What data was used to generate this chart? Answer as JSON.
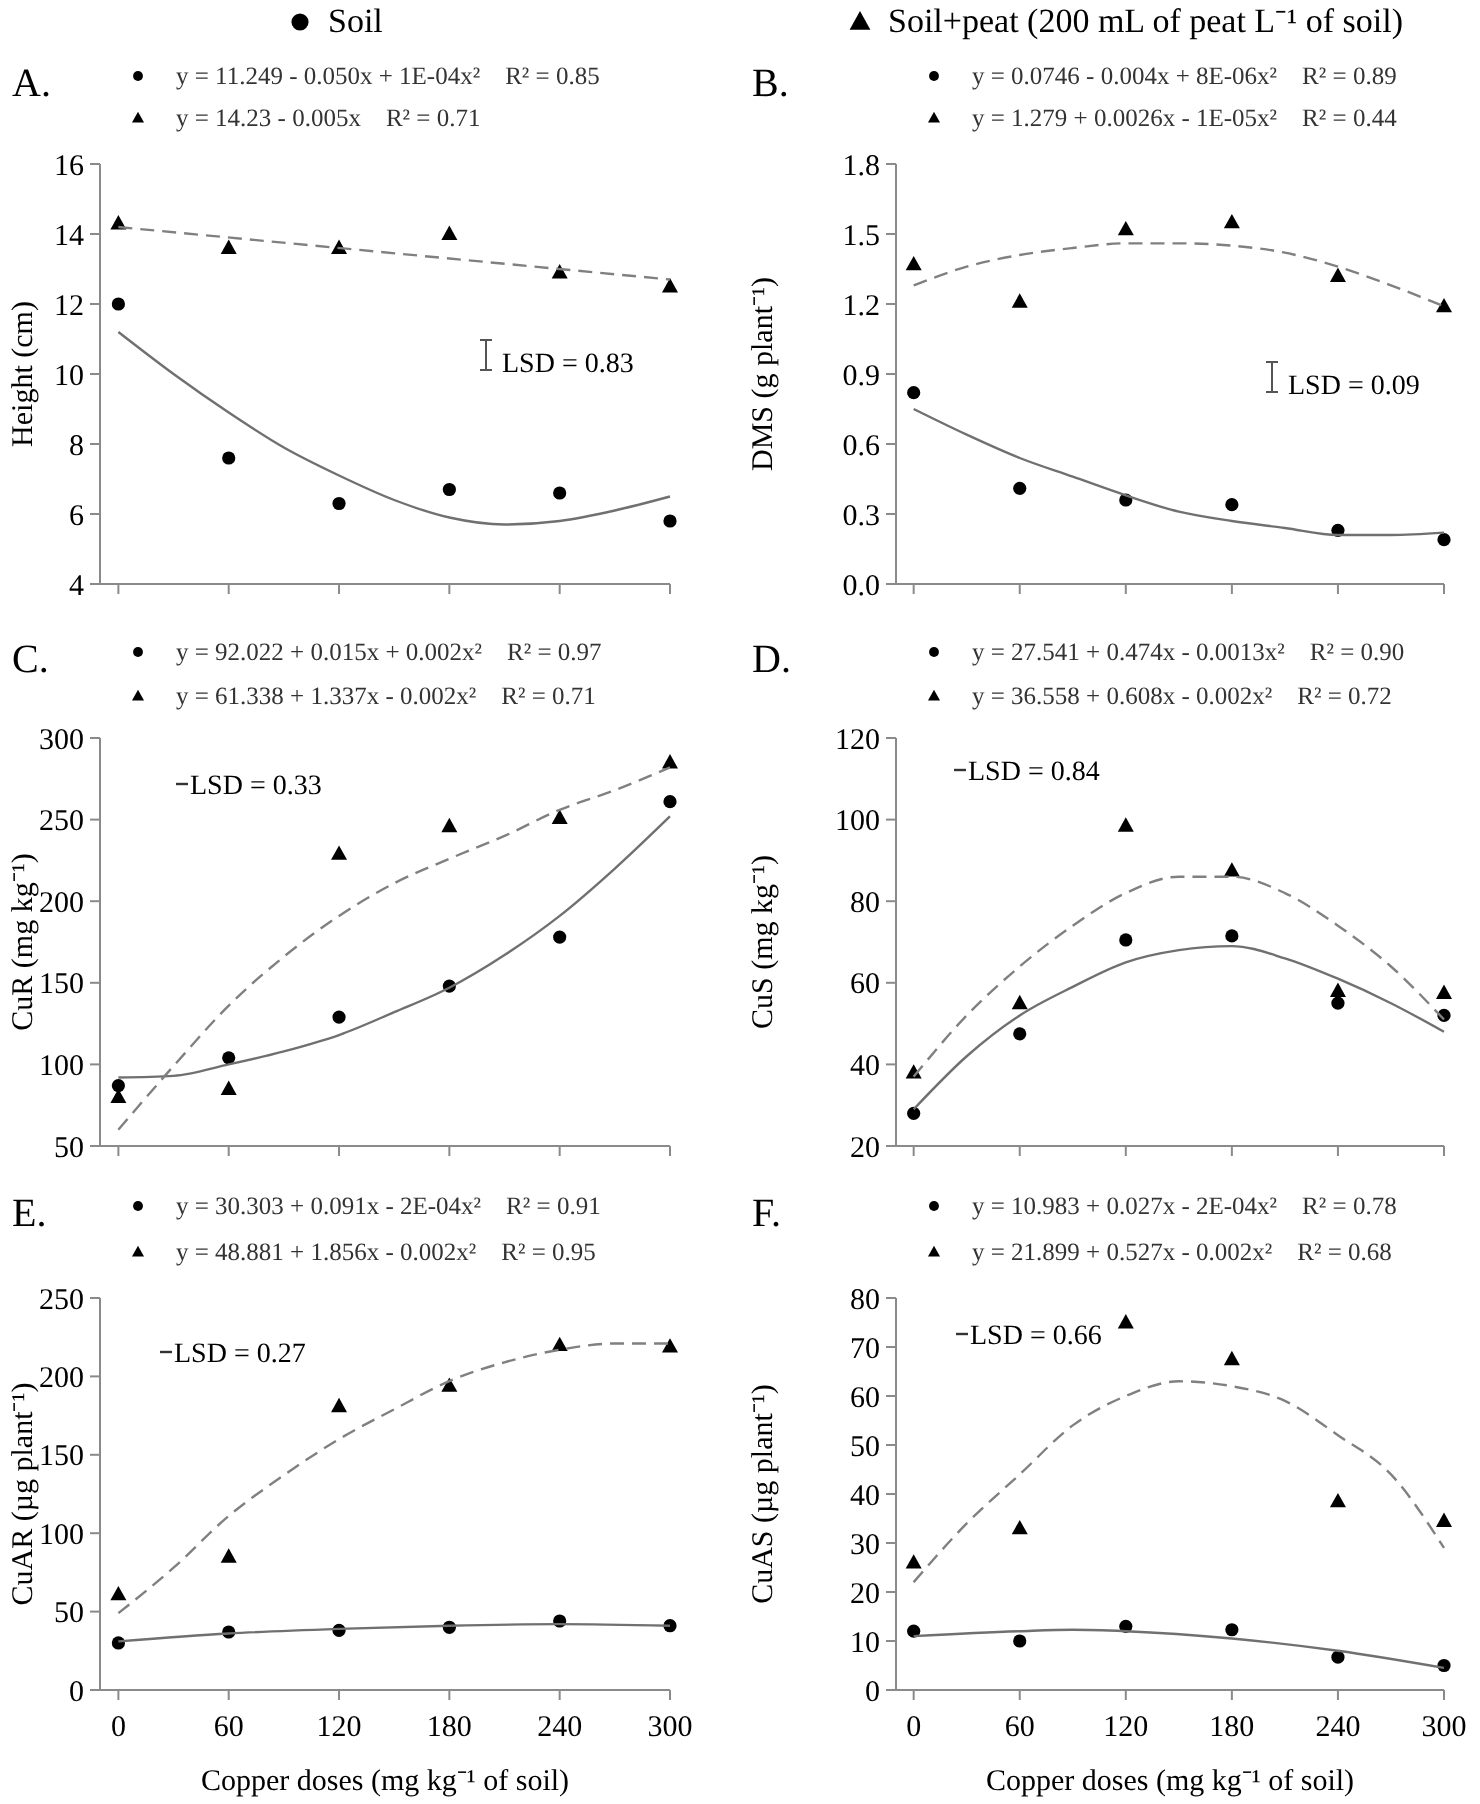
{
  "chart_data": [
    {
      "type": "scatter",
      "title": "A.",
      "ylabel": "Height (cm)",
      "legend": "top",
      "tick_labels": "y",
      "x": [
        0,
        60,
        120,
        180,
        240,
        300
      ],
      "xlim": [
        -10,
        300
      ],
      "xticks": [
        0,
        60,
        120,
        180,
        240,
        300
      ],
      "ylim": [
        4,
        16
      ],
      "yticks": [
        4,
        6,
        8,
        10,
        12,
        14,
        16
      ],
      "series": [
        {
          "name": "Soil",
          "type": "scatter",
          "marker": "circle",
          "color": "#000000",
          "values": [
            12.0,
            7.6,
            6.3,
            6.7,
            6.6,
            5.8
          ]
        },
        {
          "name": "Soil+peat (200 mL of peat L⁻¹ of soil)",
          "type": "scatter",
          "marker": "triangle",
          "color": "#000000",
          "values": [
            14.3,
            13.6,
            13.6,
            14.0,
            12.9,
            12.5
          ]
        },
        {
          "type": "line",
          "line_style": "solid",
          "color": "#707070",
          "x": [
            0,
            30,
            60,
            90,
            120,
            150,
            180,
            210,
            240,
            270,
            300
          ],
          "values": [
            11.2,
            10.0,
            8.9,
            7.9,
            7.1,
            6.4,
            5.9,
            5.7,
            5.8,
            6.1,
            6.5
          ]
        },
        {
          "type": "line",
          "line_style": "dashed",
          "color": "#808080",
          "x": [
            0,
            300
          ],
          "values": [
            14.2,
            12.7
          ]
        }
      ],
      "annotations": [
        "y = 11.249 - 0.050x + 1E-04x²    R² = 0.85",
        "y = 14.23 - 0.005x    R² = 0.71",
        "LSD = 0.83"
      ]
    },
    {
      "type": "scatter",
      "title": "B.",
      "ylabel": "DMS (g plant⁻¹)",
      "tick_labels": "y",
      "x": [
        0,
        60,
        120,
        180,
        240,
        300
      ],
      "xlim": [
        -10,
        300
      ],
      "xticks": [
        0,
        60,
        120,
        180,
        240,
        300
      ],
      "ylim": [
        0,
        1.8
      ],
      "yticks": [
        {
          "value": 0,
          "label": "0.0"
        },
        0.3,
        0.6,
        0.9,
        1.2,
        1.5,
        1.8
      ],
      "series": [
        {
          "type": "scatter",
          "marker": "circle",
          "color": "#000000",
          "values": [
            0.82,
            0.41,
            0.36,
            0.34,
            0.23,
            0.19
          ]
        },
        {
          "type": "scatter",
          "marker": "triangle",
          "color": "#000000",
          "values": [
            1.37,
            1.21,
            1.52,
            1.55,
            1.32,
            1.19
          ]
        },
        {
          "type": "line",
          "line_style": "solid",
          "color": "#707070",
          "x": [
            0,
            30,
            60,
            90,
            120,
            150,
            180,
            210,
            240,
            270,
            300
          ],
          "values": [
            0.75,
            0.64,
            0.54,
            0.46,
            0.38,
            0.31,
            0.27,
            0.24,
            0.21,
            0.21,
            0.22
          ]
        },
        {
          "type": "line",
          "line_style": "dashed",
          "color": "#808080",
          "x": [
            0,
            30,
            60,
            90,
            120,
            150,
            180,
            210,
            240,
            270,
            300
          ],
          "values": [
            1.28,
            1.36,
            1.41,
            1.44,
            1.46,
            1.46,
            1.45,
            1.42,
            1.36,
            1.28,
            1.19
          ]
        }
      ],
      "annotations": [
        "y = 0.0746 - 0.004x + 8E-06x²    R² = 0.89",
        "y = 1.279 + 0.0026x - 1E-05x²    R² = 0.44",
        "LSD = 0.09"
      ]
    },
    {
      "type": "scatter",
      "title": "C.",
      "ylabel": "CuR (mg kg⁻¹)",
      "tick_labels": "y",
      "x": [
        0,
        60,
        120,
        180,
        240,
        300
      ],
      "xlim": [
        -10,
        300
      ],
      "xticks": [
        0,
        60,
        120,
        180,
        240,
        300
      ],
      "ylim": [
        50,
        300
      ],
      "yticks": [
        50,
        100,
        150,
        200,
        250,
        300
      ],
      "series": [
        {
          "type": "scatter",
          "marker": "circle",
          "color": "#000000",
          "values": [
            87,
            104,
            129,
            148,
            178,
            261
          ]
        },
        {
          "type": "scatter",
          "marker": "triangle",
          "color": "#000000",
          "values": [
            80,
            85,
            229,
            246,
            251,
            285
          ]
        },
        {
          "type": "line",
          "line_style": "solid",
          "color": "#707070",
          "x": [
            0,
            30,
            60,
            90,
            120,
            150,
            180,
            210,
            240,
            270,
            300
          ],
          "values": [
            92,
            93,
            100,
            108,
            118,
            132,
            147,
            167,
            191,
            220,
            252
          ]
        },
        {
          "type": "line",
          "line_style": "dashed",
          "color": "#808080",
          "x": [
            0,
            30,
            60,
            90,
            120,
            150,
            180,
            210,
            240,
            270,
            300
          ],
          "values": [
            60,
            99,
            136,
            166,
            191,
            211,
            226,
            240,
            256,
            268,
            282
          ]
        }
      ],
      "annotations": [
        "y = 92.022 + 0.015x + 0.002x²    R² = 0.97",
        "y = 61.338 + 1.337x - 0.002x²    R² = 0.71",
        "LSD = 0.33"
      ]
    },
    {
      "type": "scatter",
      "title": "D.",
      "ylabel": "CuS (mg kg⁻¹)",
      "tick_labels": "y",
      "x": [
        0,
        60,
        120,
        180,
        240,
        300
      ],
      "xlim": [
        -10,
        300
      ],
      "xticks": [
        0,
        60,
        120,
        180,
        240,
        300
      ],
      "ylim": [
        20,
        120
      ],
      "yticks": [
        20,
        40,
        60,
        80,
        100,
        120
      ],
      "series": [
        {
          "type": "scatter",
          "marker": "circle",
          "color": "#000000",
          "values": [
            28,
            47.5,
            70.5,
            71.5,
            55,
            52
          ]
        },
        {
          "type": "scatter",
          "marker": "triangle",
          "color": "#000000",
          "values": [
            38,
            55,
            98.5,
            87.5,
            58,
            57.5
          ]
        },
        {
          "type": "line",
          "line_style": "solid",
          "color": "#707070",
          "x": [
            0,
            30,
            60,
            90,
            120,
            150,
            180,
            210,
            240,
            270,
            300
          ],
          "values": [
            29,
            42,
            52,
            59,
            65,
            68,
            69,
            66,
            61,
            55,
            48
          ]
        },
        {
          "type": "line",
          "line_style": "dashed",
          "color": "#808080",
          "x": [
            0,
            30,
            60,
            90,
            120,
            150,
            180,
            210,
            240,
            270,
            300
          ],
          "values": [
            37,
            52,
            64,
            74,
            82,
            86,
            86,
            82,
            74,
            64,
            51
          ]
        }
      ],
      "annotations": [
        "y = 27.541 + 0.474x - 0.0013x²    R² = 0.90",
        "y = 36.558 + 0.608x - 0.002x²    R² = 0.72",
        "LSD = 0.84"
      ]
    },
    {
      "type": "scatter",
      "title": "E.",
      "ylabel": "CuAR (µg plant⁻¹)",
      "xlabel": "Copper doses (mg kg⁻¹ of soil)",
      "x": [
        0,
        60,
        120,
        180,
        240,
        300
      ],
      "xlim": [
        -10,
        300
      ],
      "xticks": [
        0,
        60,
        120,
        180,
        240,
        300
      ],
      "ylim": [
        0,
        250
      ],
      "yticks": [
        0,
        50,
        100,
        150,
        200,
        250
      ],
      "series": [
        {
          "type": "scatter",
          "marker": "circle",
          "color": "#000000",
          "values": [
            30,
            37,
            38,
            40,
            44,
            41
          ]
        },
        {
          "type": "scatter",
          "marker": "triangle",
          "color": "#000000",
          "values": [
            61,
            85,
            181,
            194,
            220,
            219
          ]
        },
        {
          "type": "line",
          "line_style": "solid",
          "color": "#707070",
          "x": [
            0,
            60,
            120,
            180,
            240,
            300
          ],
          "values": [
            31,
            36,
            39,
            41,
            42,
            41
          ]
        },
        {
          "type": "line",
          "line_style": "dashed",
          "color": "#808080",
          "x": [
            0,
            30,
            60,
            90,
            120,
            150,
            180,
            210,
            240,
            270,
            300
          ],
          "values": [
            49,
            78,
            111,
            137,
            160,
            179,
            197,
            209,
            217,
            221,
            221
          ]
        }
      ],
      "annotations": [
        "y = 30.303 + 0.091x - 2E-04x²    R² = 0.91",
        "y = 48.881 + 1.856x - 0.002x²    R² = 0.95",
        "LSD = 0.27"
      ]
    },
    {
      "type": "scatter",
      "title": "F.",
      "ylabel": "CuAS (µg plant⁻¹)",
      "xlabel": "Copper doses (mg kg⁻¹ of soil)",
      "x": [
        0,
        60,
        120,
        180,
        240,
        300
      ],
      "xlim": [
        -10,
        300
      ],
      "xticks": [
        0,
        60,
        120,
        180,
        240,
        300
      ],
      "ylim": [
        0,
        80
      ],
      "yticks": [
        0,
        10,
        20,
        30,
        40,
        50,
        60,
        70,
        80
      ],
      "series": [
        {
          "type": "scatter",
          "marker": "circle",
          "color": "#000000",
          "values": [
            12,
            10,
            13,
            12.3,
            6.7,
            5
          ]
        },
        {
          "type": "scatter",
          "marker": "triangle",
          "color": "#000000",
          "values": [
            26,
            33,
            75,
            67.5,
            38.5,
            34.5
          ]
        },
        {
          "type": "line",
          "line_style": "solid",
          "color": "#707070",
          "x": [
            0,
            60,
            90,
            120,
            180,
            240,
            300
          ],
          "values": [
            11,
            12,
            12.3,
            12,
            10.5,
            8,
            4.5
          ]
        },
        {
          "type": "line",
          "line_style": "dashed",
          "color": "#808080",
          "x": [
            0,
            30,
            60,
            90,
            120,
            150,
            180,
            210,
            240,
            270,
            300
          ],
          "values": [
            22,
            34,
            44,
            54,
            60,
            63,
            62,
            59,
            52,
            44,
            29
          ]
        }
      ],
      "annotations": [
        "y = 10.983 + 0.027x - 2E-04x²    R² = 0.78",
        "y = 21.899 + 0.527x - 0.002x²    R² = 0.68",
        "LSD = 0.66"
      ]
    }
  ]
}
